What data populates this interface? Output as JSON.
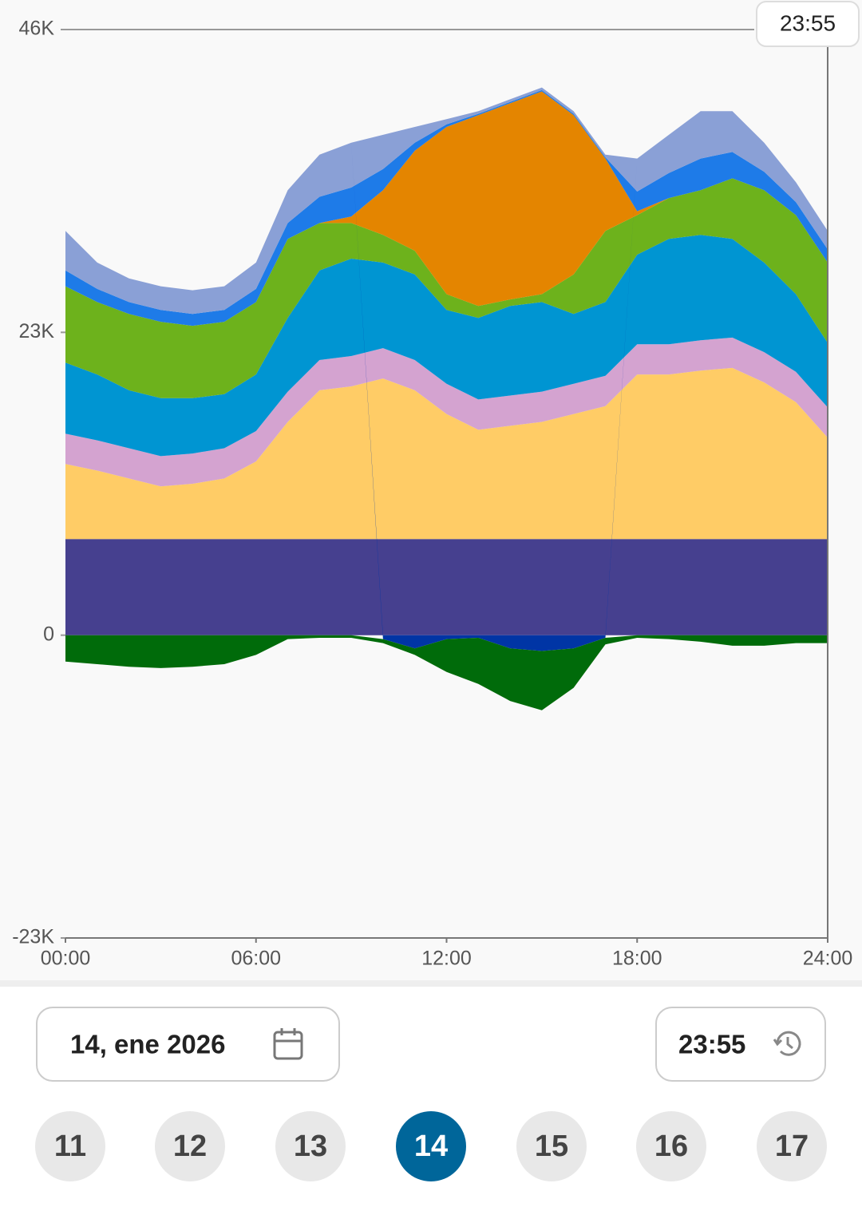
{
  "chart_data": {
    "type": "stacked_area",
    "x": [
      0,
      1,
      2,
      3,
      4,
      5,
      6,
      7,
      8,
      9,
      10,
      11,
      12,
      13,
      14,
      15,
      16,
      17,
      18,
      19,
      20,
      21,
      22,
      23,
      24
    ],
    "xlim": [
      0,
      24
    ],
    "xticks": [
      {
        "value": 0,
        "label": "00:00"
      },
      {
        "value": 6,
        "label": "06:00"
      },
      {
        "value": 12,
        "label": "12:00"
      },
      {
        "value": 18,
        "label": "18:00"
      },
      {
        "value": 24,
        "label": "24:00"
      }
    ],
    "ylim": [
      -23000,
      46000
    ],
    "yticks": [
      {
        "value": -23000,
        "label": "-23K"
      },
      {
        "value": 0,
        "label": "0"
      },
      {
        "value": 23000,
        "label": "23K"
      },
      {
        "value": 46000,
        "label": "46K"
      }
    ],
    "series": [
      {
        "color": "#46408f",
        "values": [
          7300,
          7300,
          7300,
          7300,
          7300,
          7300,
          7300,
          7300,
          7300,
          7300,
          7300,
          7300,
          7300,
          7300,
          7300,
          7300,
          7300,
          7300,
          7300,
          7300,
          7300,
          7300,
          7300,
          7300,
          7300
        ]
      },
      {
        "color": "#ffcc66",
        "values": [
          5700,
          5200,
          4600,
          4000,
          4200,
          4600,
          5900,
          8900,
          11300,
          11600,
          12200,
          11300,
          9500,
          8300,
          8600,
          8900,
          9500,
          10100,
          12500,
          12500,
          12800,
          13000,
          11900,
          10400,
          7700
        ]
      },
      {
        "color": "#d4a3d0",
        "values": [
          2300,
          2300,
          2300,
          2300,
          2300,
          2300,
          2300,
          2300,
          2300,
          2300,
          2300,
          2300,
          2300,
          2300,
          2300,
          2300,
          2300,
          2300,
          2300,
          2300,
          2300,
          2300,
          2300,
          2300,
          2300
        ]
      },
      {
        "color": "#0095d2",
        "values": [
          5400,
          5000,
          4400,
          4400,
          4200,
          4100,
          4300,
          5600,
          6800,
          7400,
          6500,
          6500,
          5600,
          6200,
          6800,
          6800,
          5300,
          5600,
          6800,
          8000,
          8000,
          7500,
          6800,
          5900,
          4900
        ]
      },
      {
        "color": "#6db21c",
        "values": [
          5800,
          5500,
          5800,
          5800,
          5500,
          5500,
          5500,
          6000,
          3600,
          2700,
          2100,
          1800,
          1200,
          900,
          500,
          600,
          3000,
          5400,
          3000,
          3100,
          3400,
          4600,
          5500,
          6000,
          6100
        ]
      },
      {
        "color": "#e48500",
        "values": [
          0,
          0,
          0,
          0,
          0,
          0,
          0,
          0,
          0,
          500,
          3400,
          7600,
          12700,
          14500,
          14900,
          15400,
          12100,
          5500,
          300,
          0,
          0,
          0,
          0,
          0,
          0
        ]
      },
      {
        "color": "#1e7be8",
        "values": [
          1200,
          1000,
          900,
          900,
          900,
          900,
          1000,
          1200,
          2000,
          2200,
          1600,
          600,
          200,
          100,
          100,
          100,
          100,
          100,
          1500,
          1900,
          2400,
          2000,
          1400,
          1000,
          1000
        ]
      },
      {
        "color": "#8aa0d6",
        "values": [
          3000,
          2000,
          1800,
          1800,
          1800,
          1800,
          2000,
          2500,
          3200,
          3400,
          2600,
          1200,
          400,
          200,
          200,
          200,
          200,
          200,
          2500,
          2900,
          3600,
          3100,
          2200,
          1500,
          1400
        ]
      },
      {
        "color": "#0035a5",
        "values": [
          0,
          0,
          0,
          0,
          0,
          0,
          0,
          0,
          0,
          0,
          -300,
          -1000,
          -300,
          -200,
          -1000,
          -1200,
          -1000,
          -200,
          0,
          0,
          0,
          0,
          0,
          0,
          0
        ]
      },
      {
        "color": "#006b0a",
        "values": [
          -2000,
          -2200,
          -2400,
          -2500,
          -2400,
          -2200,
          -1500,
          -300,
          -200,
          -200,
          -300,
          -500,
          -2500,
          -3500,
          -4000,
          -4500,
          -3000,
          -500,
          -200,
          -300,
          -500,
          -800,
          -800,
          -600,
          -600
        ]
      }
    ]
  },
  "controls": {
    "tooltip_time": "23:55",
    "date": "14, ene 2026",
    "time": "23:55",
    "days": [
      "11",
      "12",
      "13",
      "14",
      "15",
      "16",
      "17"
    ],
    "selected_day": "14"
  }
}
